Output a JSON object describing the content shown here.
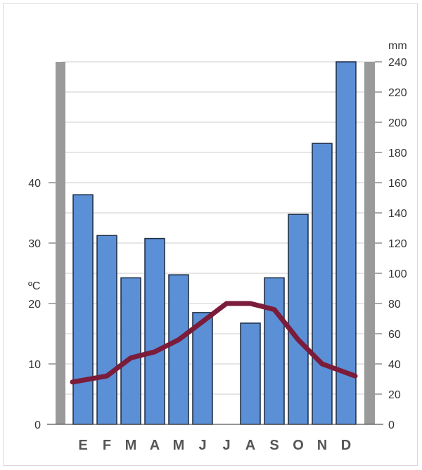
{
  "chart_data": {
    "type": "bar",
    "title": "",
    "categories": [
      "E",
      "F",
      "M",
      "A",
      "M",
      "J",
      "J",
      "A",
      "S",
      "O",
      "N",
      "D"
    ],
    "series": [
      {
        "kind": "bar",
        "axis": "right",
        "values": [
          152,
          125,
          97,
          123,
          99,
          74,
          0,
          67,
          97,
          139,
          186,
          240
        ]
      },
      {
        "kind": "line",
        "axis": "left",
        "values": [
          7,
          8,
          11,
          12,
          14,
          17,
          20,
          20,
          19,
          14,
          10,
          8
        ]
      }
    ],
    "left_axis": {
      "unit": "ºC",
      "ylim": [
        0,
        60
      ],
      "ticks": [
        "0",
        "10",
        "20",
        "30",
        "40"
      ]
    },
    "right_axis": {
      "unit": "mm",
      "ylim": [
        0,
        240
      ],
      "ticks": [
        "0",
        "20",
        "40",
        "60",
        "80",
        "100",
        "120",
        "140",
        "160",
        "180",
        "200",
        "220",
        "240"
      ]
    },
    "grid": true,
    "colors": {
      "bar_fill": "#5b8fd6",
      "bar_stroke": "#1a2a40",
      "line": "#7a1c3a",
      "side_bars": "#9a9a9a",
      "grid": "#cccccc"
    }
  }
}
